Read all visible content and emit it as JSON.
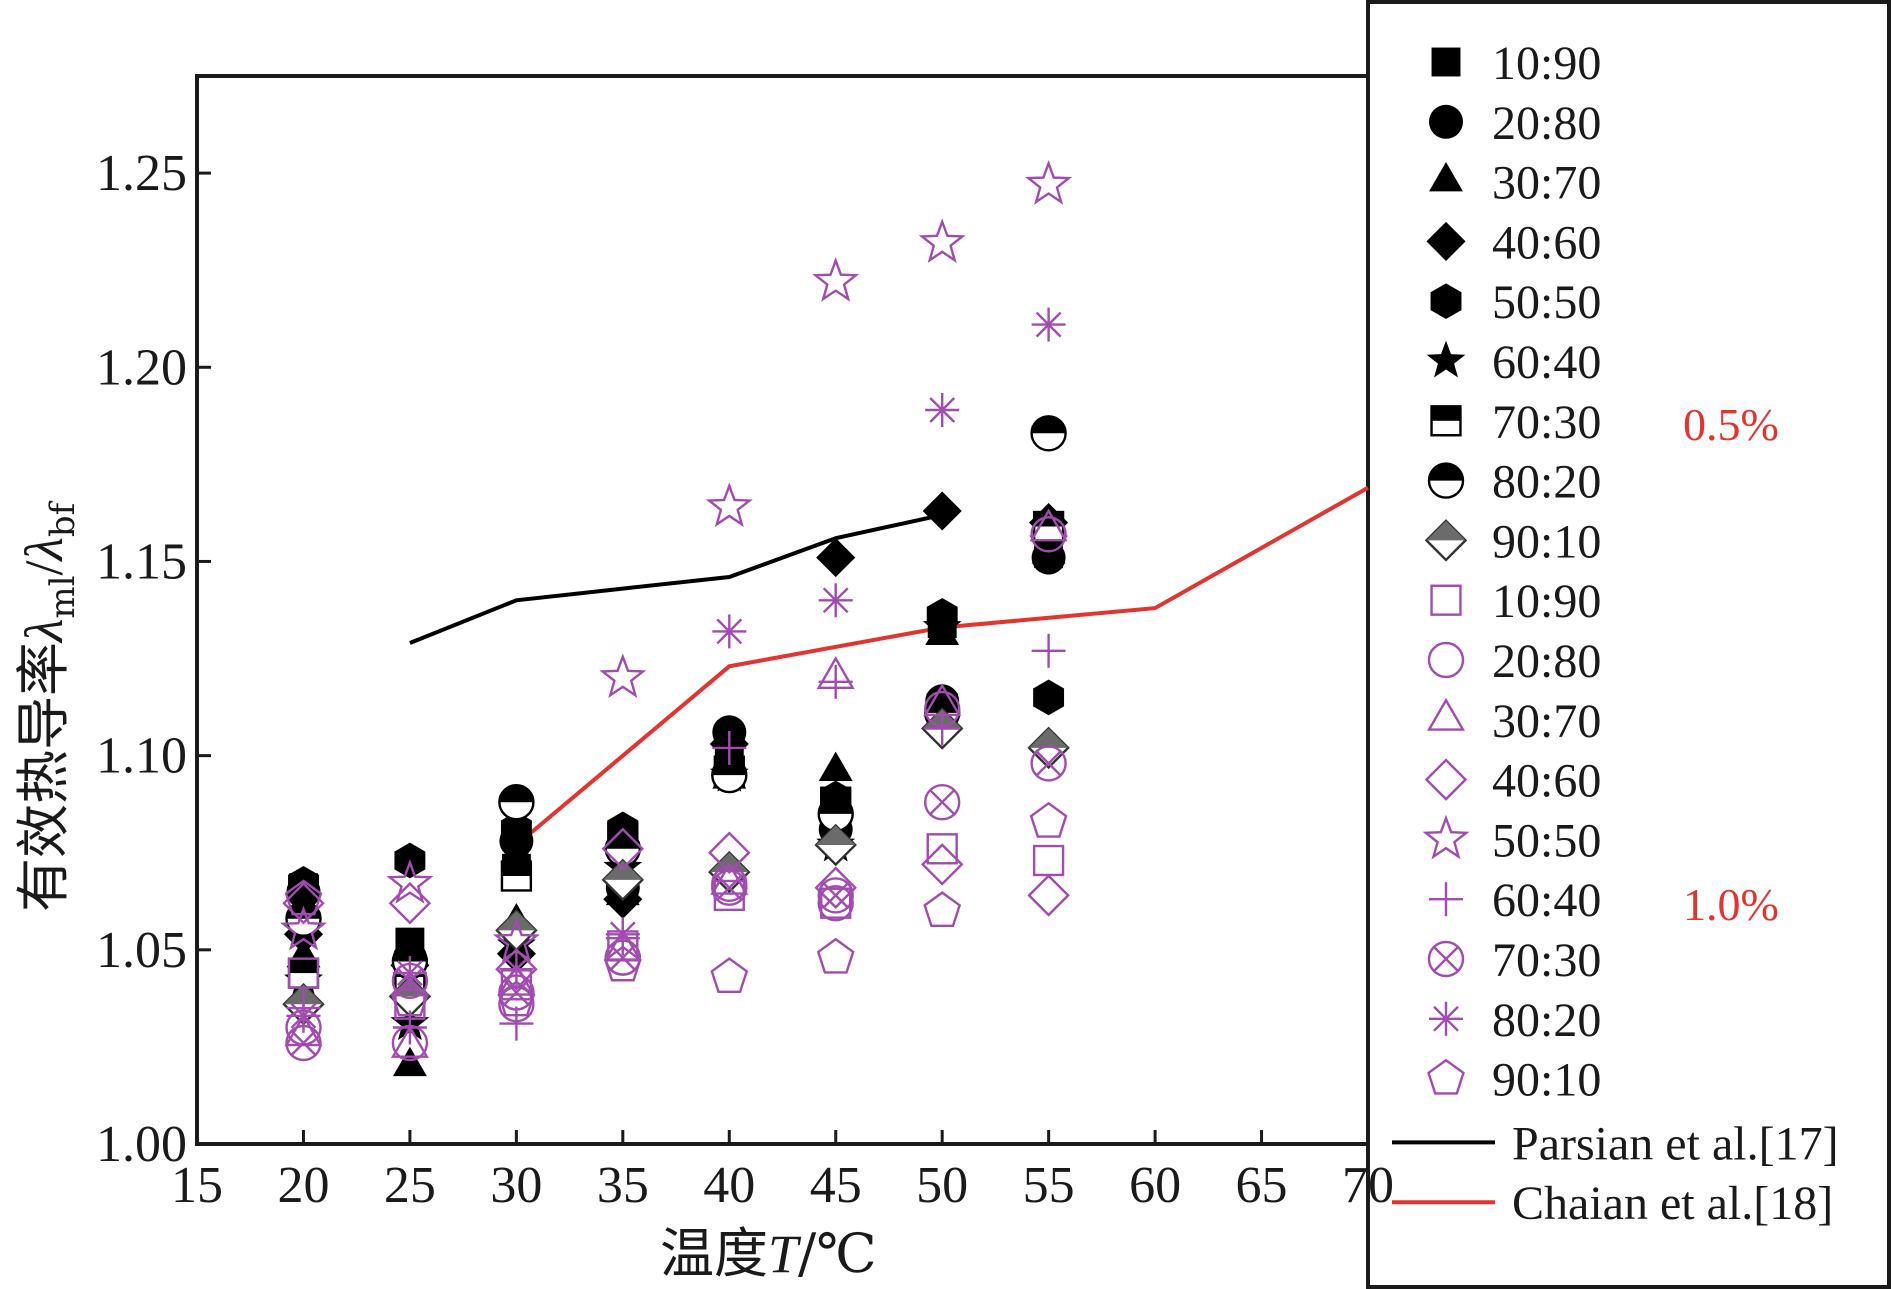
{
  "chart_data": {
    "type": "scatter",
    "xlabel_cn": "温度",
    "xlabel_var": "T",
    "xlabel_unit": "/℃",
    "ylabel_cn": "有效热导率",
    "ylabel_num": "λ",
    "ylabel_num_sub": "ml",
    "ylabel_den": "λ",
    "ylabel_den_sub": "bf",
    "xlim": [
      15,
      70
    ],
    "ylim": [
      1.0,
      1.275
    ],
    "xticks": [
      "15",
      "20",
      "25",
      "30",
      "35",
      "40",
      "45",
      "50",
      "55",
      "60",
      "65",
      "70"
    ],
    "yticks": [
      "1.00",
      "1.05",
      "1.10",
      "1.15",
      "1.20",
      "1.25"
    ],
    "group_labels": {
      "black": "0.5%",
      "purple": "1.0%"
    },
    "colors": {
      "black": "#000000",
      "purple": "#a24bb0",
      "gray": "#6b6b6b",
      "red": "#e3342f"
    },
    "series": [
      {
        "name": "10:90",
        "group": "0.5%",
        "marker": "square-filled",
        "x": [
          20,
          25,
          30,
          35,
          40,
          45,
          50,
          55
        ],
        "y": [
          1.066,
          1.052,
          1.071,
          1.079,
          1.101,
          1.087,
          1.134,
          1.152
        ]
      },
      {
        "name": "20:80",
        "group": "0.5%",
        "marker": "circle-filled",
        "x": [
          20,
          25,
          30,
          35,
          40,
          45,
          50,
          55
        ],
        "y": [
          1.065,
          1.048,
          1.078,
          1.066,
          1.106,
          1.081,
          1.114,
          1.151
        ]
      },
      {
        "name": "30:70",
        "group": "0.5%",
        "marker": "triangle-filled",
        "x": [
          20,
          25,
          30,
          35,
          40,
          45,
          50,
          55
        ],
        "y": [
          1.048,
          1.02,
          1.057,
          1.064,
          1.094,
          1.096,
          1.131,
          1.152
        ]
      },
      {
        "name": "40:60",
        "group": "0.5%",
        "marker": "diamond-filled",
        "x": [
          20,
          25,
          30,
          35,
          40,
          45,
          50,
          55
        ],
        "y": [
          1.054,
          1.046,
          1.049,
          1.063,
          1.103,
          1.151,
          1.163,
          1.16
        ]
      },
      {
        "name": "50:50",
        "group": "0.5%",
        "marker": "hexagon-filled",
        "x": [
          20,
          25,
          30,
          35,
          40,
          45,
          50,
          55
        ],
        "y": [
          1.067,
          1.073,
          1.081,
          1.081,
          1.105,
          1.089,
          1.136,
          1.115
        ]
      },
      {
        "name": "60:40",
        "group": "0.5%",
        "marker": "star-filled",
        "x": [
          20,
          25,
          30,
          35,
          40,
          45,
          50,
          55
        ],
        "y": [
          1.042,
          1.031,
          1.051,
          1.071,
          1.095,
          1.077,
          1.133,
          1.155
        ]
      },
      {
        "name": "70:30",
        "group": "0.5%",
        "marker": "square-half",
        "x": [
          20,
          25,
          30,
          35,
          40,
          45,
          50,
          55
        ],
        "y": [
          1.044,
          1.043,
          1.069,
          1.079,
          1.096,
          1.088,
          1.112,
          1.159
        ]
      },
      {
        "name": "80:20",
        "group": "0.5%",
        "marker": "circle-half",
        "x": [
          20,
          25,
          30,
          35,
          40,
          45,
          50,
          55
        ],
        "y": [
          1.058,
          1.047,
          1.088,
          1.076,
          1.095,
          1.085,
          1.111,
          1.183
        ]
      },
      {
        "name": "90:10",
        "group": "0.5%",
        "marker": "diamond-half",
        "x": [
          20,
          25,
          30,
          35,
          40,
          45,
          50,
          55
        ],
        "y": [
          1.036,
          1.038,
          1.055,
          1.068,
          1.07,
          1.077,
          1.107,
          1.102
        ]
      },
      {
        "name": "10:90",
        "group": "1.0%",
        "marker": "square-open",
        "x": [
          20,
          25,
          30,
          35,
          40,
          45,
          50,
          55
        ],
        "y": [
          1.044,
          1.036,
          1.041,
          1.051,
          1.064,
          1.062,
          1.076,
          1.073
        ]
      },
      {
        "name": "20:80",
        "group": "1.0%",
        "marker": "circle-open",
        "x": [
          20,
          25,
          30,
          35,
          40,
          45,
          50,
          55
        ],
        "y": [
          1.03,
          1.026,
          1.036,
          1.048,
          1.067,
          1.062,
          1.112,
          1.157
        ]
      },
      {
        "name": "30:70",
        "group": "1.0%",
        "marker": "triangle-open",
        "x": [
          20,
          25,
          30,
          35,
          40,
          45,
          50,
          55
        ],
        "y": [
          1.028,
          1.025,
          1.041,
          1.05,
          1.067,
          1.12,
          1.113,
          1.158
        ]
      },
      {
        "name": "40:60",
        "group": "1.0%",
        "marker": "diamond-open",
        "x": [
          20,
          25,
          30,
          35,
          40,
          45,
          50,
          55
        ],
        "y": [
          1.062,
          1.062,
          1.045,
          1.076,
          1.075,
          1.066,
          1.072,
          1.064
        ]
      },
      {
        "name": "50:50",
        "group": "1.0%",
        "marker": "star-open",
        "x": [
          20,
          25,
          30,
          35,
          40,
          45,
          50,
          55
        ],
        "y": [
          1.055,
          1.067,
          1.052,
          1.12,
          1.164,
          1.222,
          1.232,
          1.247
        ]
      },
      {
        "name": "60:40",
        "group": "1.0%",
        "marker": "plus",
        "x": [
          20,
          25,
          30,
          35,
          40,
          45,
          50,
          55
        ],
        "y": [
          1.035,
          1.03,
          1.031,
          1.053,
          1.102,
          1.119,
          1.107,
          1.127
        ]
      },
      {
        "name": "70:30",
        "group": "1.0%",
        "marker": "circle-x",
        "x": [
          20,
          25,
          30,
          35,
          40,
          45,
          50,
          55
        ],
        "y": [
          1.026,
          1.042,
          1.039,
          1.048,
          1.066,
          1.064,
          1.088,
          1.098
        ]
      },
      {
        "name": "80:20",
        "group": "1.0%",
        "marker": "asterisk",
        "x": [
          20,
          25,
          30,
          35,
          40,
          45,
          50,
          55
        ],
        "y": [
          1.033,
          1.044,
          1.045,
          1.054,
          1.132,
          1.14,
          1.189,
          1.211
        ]
      },
      {
        "name": "90:10",
        "group": "1.0%",
        "marker": "pentagon-open",
        "x": [
          20,
          25,
          30,
          35,
          40,
          45,
          50,
          55
        ],
        "y": [
          1.063,
          1.037,
          1.037,
          1.046,
          1.043,
          1.048,
          1.06,
          1.083
        ]
      }
    ],
    "lines": [
      {
        "name": "Parsian et al.[17]",
        "color": "black",
        "x": [
          25,
          30,
          35,
          40,
          45,
          50
        ],
        "y": [
          1.129,
          1.14,
          1.143,
          1.146,
          1.156,
          1.162
        ]
      },
      {
        "name": "Chaian et al.[18]",
        "color": "red",
        "x": [
          30,
          40,
          50,
          60,
          70
        ],
        "y": [
          1.077,
          1.123,
          1.133,
          1.138,
          1.169
        ]
      }
    ]
  }
}
